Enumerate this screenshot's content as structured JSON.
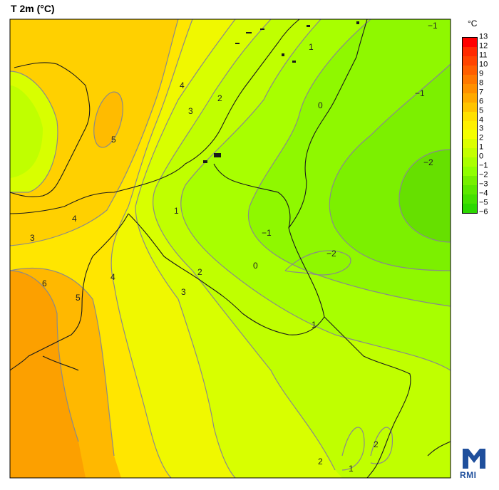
{
  "map": {
    "title": "T 2m (°C)",
    "unit": "°C",
    "logo_text": "RMI"
  },
  "legend": {
    "levels": [
      {
        "label": "13",
        "color": "#ff0000"
      },
      {
        "label": "12",
        "color": "#ff2a00"
      },
      {
        "label": "11",
        "color": "#ff4400"
      },
      {
        "label": "10",
        "color": "#ff5e00"
      },
      {
        "label": "9",
        "color": "#ff7800"
      },
      {
        "label": "8",
        "color": "#ff9000"
      },
      {
        "label": "7",
        "color": "#ffaa00"
      },
      {
        "label": "6",
        "color": "#ffc400"
      },
      {
        "label": "5",
        "color": "#ffe000"
      },
      {
        "label": "4",
        "color": "#fff000"
      },
      {
        "label": "3",
        "color": "#f4ff00"
      },
      {
        "label": "2",
        "color": "#dcff00"
      },
      {
        "label": "1",
        "color": "#c4ff00"
      },
      {
        "label": "0",
        "color": "#aaff00"
      },
      {
        "label": "−1",
        "color": "#90ff00"
      },
      {
        "label": "−2",
        "color": "#76f000"
      },
      {
        "label": "−3",
        "color": "#5ce800"
      },
      {
        "label": "−4",
        "color": "#44e000"
      },
      {
        "label": "−5",
        "color": "#2cd800"
      },
      {
        "label": "−6",
        "color": "#18d000"
      }
    ]
  },
  "contour_labels": [
    {
      "text": "4"
    },
    {
      "text": "3"
    },
    {
      "text": "2"
    },
    {
      "text": "5"
    },
    {
      "text": "1"
    },
    {
      "text": "0"
    },
    {
      "text": "−1"
    },
    {
      "text": "−1"
    },
    {
      "text": "−2"
    },
    {
      "text": "−1"
    },
    {
      "text": "−2"
    },
    {
      "text": "0"
    },
    {
      "text": "1"
    },
    {
      "text": "2"
    },
    {
      "text": "3"
    },
    {
      "text": "4"
    },
    {
      "text": "3"
    },
    {
      "text": "4"
    },
    {
      "text": "6"
    },
    {
      "text": "5"
    },
    {
      "text": "1"
    },
    {
      "text": "2"
    },
    {
      "text": "1"
    },
    {
      "text": "2"
    }
  ],
  "colors": {
    "warm": "#f5a000",
    "mid": "#ffee00",
    "cool": "#66e000"
  }
}
